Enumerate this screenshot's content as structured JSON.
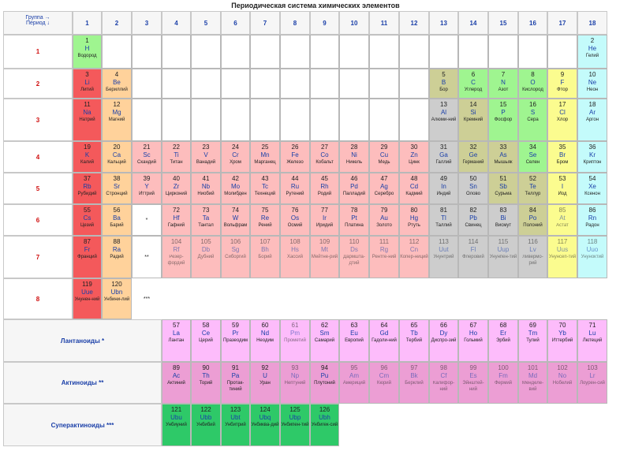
{
  "title": "Периодическая система химических элементов",
  "corner": {
    "group_label": "Группа →",
    "period_label": "Период ↓"
  },
  "groups": [
    "1",
    "2",
    "3",
    "4",
    "5",
    "6",
    "7",
    "8",
    "9",
    "10",
    "11",
    "12",
    "13",
    "14",
    "15",
    "16",
    "17",
    "18"
  ],
  "periods": [
    "1",
    "2",
    "3",
    "4",
    "5",
    "6",
    "7",
    "8"
  ],
  "series_labels": {
    "lan": "Лантаноиды *",
    "act": "Актиноиды **",
    "sup": "Суперактиноиды ***"
  },
  "markers": {
    "p6": "*",
    "p7": "**",
    "p8": "***"
  },
  "colors": {
    "alk": "#f4595b",
    "ae": "#ffd29b",
    "tm": "#fdbdbd",
    "post": "#cdcdcd",
    "met": "#cdcf96",
    "nm": "#9ff590",
    "hal": "#fbfc8f",
    "ng": "#c4fbfb",
    "lan": "#fdbcfb",
    "act": "#ec9ed4",
    "sup": "#2ec968",
    "symbol": "#1a3fa8",
    "period_number": "#d01010"
  },
  "elements": [
    {
      "n": "1",
      "s": "H",
      "name": "Водород",
      "g": 1,
      "p": 1,
      "c": "nm"
    },
    {
      "n": "2",
      "s": "He",
      "name": "Гелий",
      "g": 18,
      "p": 1,
      "c": "ng"
    },
    {
      "n": "3",
      "s": "Li",
      "name": "Литий",
      "g": 1,
      "p": 2,
      "c": "alk"
    },
    {
      "n": "4",
      "s": "Be",
      "name": "Бериллий",
      "g": 2,
      "p": 2,
      "c": "ae"
    },
    {
      "n": "5",
      "s": "B",
      "name": "Бор",
      "g": 13,
      "p": 2,
      "c": "met"
    },
    {
      "n": "6",
      "s": "C",
      "name": "Углерод",
      "g": 14,
      "p": 2,
      "c": "nm"
    },
    {
      "n": "7",
      "s": "N",
      "name": "Азот",
      "g": 15,
      "p": 2,
      "c": "nm"
    },
    {
      "n": "8",
      "s": "O",
      "name": "Кислород",
      "g": 16,
      "p": 2,
      "c": "nm"
    },
    {
      "n": "9",
      "s": "F",
      "name": "Фтор",
      "g": 17,
      "p": 2,
      "c": "hal"
    },
    {
      "n": "10",
      "s": "Ne",
      "name": "Неон",
      "g": 18,
      "p": 2,
      "c": "ng"
    },
    {
      "n": "11",
      "s": "Na",
      "name": "Натрий",
      "g": 1,
      "p": 3,
      "c": "alk"
    },
    {
      "n": "12",
      "s": "Mg",
      "name": "Магний",
      "g": 2,
      "p": 3,
      "c": "ae"
    },
    {
      "n": "13",
      "s": "Al",
      "name": "Алюми-ний",
      "g": 13,
      "p": 3,
      "c": "post"
    },
    {
      "n": "14",
      "s": "Si",
      "name": "Кремний",
      "g": 14,
      "p": 3,
      "c": "met"
    },
    {
      "n": "15",
      "s": "P",
      "name": "Фосфор",
      "g": 15,
      "p": 3,
      "c": "nm"
    },
    {
      "n": "16",
      "s": "S",
      "name": "Сера",
      "g": 16,
      "p": 3,
      "c": "nm"
    },
    {
      "n": "17",
      "s": "Cl",
      "name": "Хлор",
      "g": 17,
      "p": 3,
      "c": "hal"
    },
    {
      "n": "18",
      "s": "Ar",
      "name": "Аргон",
      "g": 18,
      "p": 3,
      "c": "ng"
    },
    {
      "n": "19",
      "s": "K",
      "name": "Калий",
      "g": 1,
      "p": 4,
      "c": "alk"
    },
    {
      "n": "20",
      "s": "Ca",
      "name": "Кальций",
      "g": 2,
      "p": 4,
      "c": "ae"
    },
    {
      "n": "21",
      "s": "Sc",
      "name": "Скандий",
      "g": 3,
      "p": 4,
      "c": "tm"
    },
    {
      "n": "22",
      "s": "Ti",
      "name": "Титан",
      "g": 4,
      "p": 4,
      "c": "tm"
    },
    {
      "n": "23",
      "s": "V",
      "name": "Ванадий",
      "g": 5,
      "p": 4,
      "c": "tm"
    },
    {
      "n": "24",
      "s": "Cr",
      "name": "Хром",
      "g": 6,
      "p": 4,
      "c": "tm"
    },
    {
      "n": "25",
      "s": "Mn",
      "name": "Марганец",
      "g": 7,
      "p": 4,
      "c": "tm"
    },
    {
      "n": "26",
      "s": "Fe",
      "name": "Железо",
      "g": 8,
      "p": 4,
      "c": "tm"
    },
    {
      "n": "27",
      "s": "Co",
      "name": "Кобальт",
      "g": 9,
      "p": 4,
      "c": "tm"
    },
    {
      "n": "28",
      "s": "Ni",
      "name": "Никель",
      "g": 10,
      "p": 4,
      "c": "tm"
    },
    {
      "n": "29",
      "s": "Cu",
      "name": "Медь",
      "g": 11,
      "p": 4,
      "c": "tm"
    },
    {
      "n": "30",
      "s": "Zn",
      "name": "Цинк",
      "g": 12,
      "p": 4,
      "c": "tm"
    },
    {
      "n": "31",
      "s": "Ga",
      "name": "Галлий",
      "g": 13,
      "p": 4,
      "c": "post"
    },
    {
      "n": "32",
      "s": "Ge",
      "name": "Германий",
      "g": 14,
      "p": 4,
      "c": "met"
    },
    {
      "n": "33",
      "s": "As",
      "name": "Мышьяк",
      "g": 15,
      "p": 4,
      "c": "met"
    },
    {
      "n": "34",
      "s": "Se",
      "name": "Селен",
      "g": 16,
      "p": 4,
      "c": "nm"
    },
    {
      "n": "35",
      "s": "Br",
      "name": "Бром",
      "g": 17,
      "p": 4,
      "c": "hal"
    },
    {
      "n": "36",
      "s": "Kr",
      "name": "Криптон",
      "g": 18,
      "p": 4,
      "c": "ng"
    },
    {
      "n": "37",
      "s": "Rb",
      "name": "Рубидий",
      "g": 1,
      "p": 5,
      "c": "alk"
    },
    {
      "n": "38",
      "s": "Sr",
      "name": "Стронций",
      "g": 2,
      "p": 5,
      "c": "ae"
    },
    {
      "n": "39",
      "s": "Y",
      "name": "Иттрий",
      "g": 3,
      "p": 5,
      "c": "tm"
    },
    {
      "n": "40",
      "s": "Zr",
      "name": "Цирконий",
      "g": 4,
      "p": 5,
      "c": "tm"
    },
    {
      "n": "41",
      "s": "Nb",
      "name": "Ниобий",
      "g": 5,
      "p": 5,
      "c": "tm"
    },
    {
      "n": "42",
      "s": "Mo",
      "name": "Молибден",
      "g": 6,
      "p": 5,
      "c": "tm"
    },
    {
      "n": "43",
      "s": "Tc",
      "name": "Технеций",
      "g": 7,
      "p": 5,
      "c": "tm"
    },
    {
      "n": "44",
      "s": "Ru",
      "name": "Рутений",
      "g": 8,
      "p": 5,
      "c": "tm"
    },
    {
      "n": "45",
      "s": "Rh",
      "name": "Родий",
      "g": 9,
      "p": 5,
      "c": "tm"
    },
    {
      "n": "46",
      "s": "Pd",
      "name": "Палладий",
      "g": 10,
      "p": 5,
      "c": "tm"
    },
    {
      "n": "47",
      "s": "Ag",
      "name": "Серебро",
      "g": 11,
      "p": 5,
      "c": "tm"
    },
    {
      "n": "48",
      "s": "Cd",
      "name": "Кадмий",
      "g": 12,
      "p": 5,
      "c": "tm"
    },
    {
      "n": "49",
      "s": "In",
      "name": "Индий",
      "g": 13,
      "p": 5,
      "c": "post"
    },
    {
      "n": "50",
      "s": "Sn",
      "name": "Олово",
      "g": 14,
      "p": 5,
      "c": "post"
    },
    {
      "n": "51",
      "s": "Sb",
      "name": "Сурьма",
      "g": 15,
      "p": 5,
      "c": "met"
    },
    {
      "n": "52",
      "s": "Te",
      "name": "Теллур",
      "g": 16,
      "p": 5,
      "c": "met"
    },
    {
      "n": "53",
      "s": "I",
      "name": "Иод",
      "g": 17,
      "p": 5,
      "c": "hal"
    },
    {
      "n": "54",
      "s": "Xe",
      "name": "Ксенон",
      "g": 18,
      "p": 5,
      "c": "ng"
    },
    {
      "n": "55",
      "s": "Cs",
      "name": "Цезий",
      "g": 1,
      "p": 6,
      "c": "alk"
    },
    {
      "n": "56",
      "s": "Ba",
      "name": "Барий",
      "g": 2,
      "p": 6,
      "c": "ae"
    },
    {
      "n": "72",
      "s": "Hf",
      "name": "Гафний",
      "g": 4,
      "p": 6,
      "c": "tm"
    },
    {
      "n": "73",
      "s": "Ta",
      "name": "Тантал",
      "g": 5,
      "p": 6,
      "c": "tm"
    },
    {
      "n": "74",
      "s": "W",
      "name": "Вольфрам",
      "g": 6,
      "p": 6,
      "c": "tm"
    },
    {
      "n": "75",
      "s": "Re",
      "name": "Рений",
      "g": 7,
      "p": 6,
      "c": "tm"
    },
    {
      "n": "76",
      "s": "Os",
      "name": "Осмий",
      "g": 8,
      "p": 6,
      "c": "tm"
    },
    {
      "n": "77",
      "s": "Ir",
      "name": "Иридий",
      "g": 9,
      "p": 6,
      "c": "tm"
    },
    {
      "n": "78",
      "s": "Pt",
      "name": "Платина",
      "g": 10,
      "p": 6,
      "c": "tm"
    },
    {
      "n": "79",
      "s": "Au",
      "name": "Золото",
      "g": 11,
      "p": 6,
      "c": "tm"
    },
    {
      "n": "80",
      "s": "Hg",
      "name": "Ртуть",
      "g": 12,
      "p": 6,
      "c": "tm"
    },
    {
      "n": "81",
      "s": "Tl",
      "name": "Таллий",
      "g": 13,
      "p": 6,
      "c": "post"
    },
    {
      "n": "82",
      "s": "Pb",
      "name": "Свинец",
      "g": 14,
      "p": 6,
      "c": "post"
    },
    {
      "n": "83",
      "s": "Bi",
      "name": "Висмут",
      "g": 15,
      "p": 6,
      "c": "post"
    },
    {
      "n": "84",
      "s": "Po",
      "name": "Полоний",
      "g": 16,
      "p": 6,
      "c": "met"
    },
    {
      "n": "85",
      "s": "At",
      "name": "Астат",
      "g": 17,
      "p": 6,
      "c": "hal",
      "faint": true
    },
    {
      "n": "86",
      "s": "Rn",
      "name": "Радон",
      "g": 18,
      "p": 6,
      "c": "ng"
    },
    {
      "n": "87",
      "s": "Fr",
      "name": "Франций",
      "g": 1,
      "p": 7,
      "c": "alk"
    },
    {
      "n": "88",
      "s": "Ra",
      "name": "Радий",
      "g": 2,
      "p": 7,
      "c": "ae"
    },
    {
      "n": "104",
      "s": "Rf",
      "name": "Резер-фордий",
      "g": 4,
      "p": 7,
      "c": "tm",
      "faint": true
    },
    {
      "n": "105",
      "s": "Db",
      "name": "Дубний",
      "g": 5,
      "p": 7,
      "c": "tm",
      "faint": true
    },
    {
      "n": "106",
      "s": "Sg",
      "name": "Сиборгий",
      "g": 6,
      "p": 7,
      "c": "tm",
      "faint": true
    },
    {
      "n": "107",
      "s": "Bh",
      "name": "Борий",
      "g": 7,
      "p": 7,
      "c": "tm",
      "faint": true
    },
    {
      "n": "108",
      "s": "Hs",
      "name": "Хассий",
      "g": 8,
      "p": 7,
      "c": "tm",
      "faint": true
    },
    {
      "n": "109",
      "s": "Mt",
      "name": "Мейтне-рий",
      "g": 9,
      "p": 7,
      "c": "tm",
      "faint": true
    },
    {
      "n": "110",
      "s": "Ds",
      "name": "Дармшта-дтий",
      "g": 10,
      "p": 7,
      "c": "tm",
      "faint": true
    },
    {
      "n": "111",
      "s": "Rg",
      "name": "Рентге-ний",
      "g": 11,
      "p": 7,
      "c": "tm",
      "faint": true
    },
    {
      "n": "112",
      "s": "Cn",
      "name": "Копер-ниций",
      "g": 12,
      "p": 7,
      "c": "tm",
      "faint": true
    },
    {
      "n": "113",
      "s": "Uut",
      "name": "Унунтрий",
      "g": 13,
      "p": 7,
      "c": "post",
      "faint": true
    },
    {
      "n": "114",
      "s": "Fl",
      "name": "Флеровий",
      "g": 14,
      "p": 7,
      "c": "post",
      "faint": true
    },
    {
      "n": "115",
      "s": "Uup",
      "name": "Унунпен-тий",
      "g": 15,
      "p": 7,
      "c": "post",
      "faint": true
    },
    {
      "n": "116",
      "s": "Lv",
      "name": "Ливермо-рий",
      "g": 16,
      "p": 7,
      "c": "post",
      "faint": true
    },
    {
      "n": "117",
      "s": "Uus",
      "name": "Унунсеп-тий",
      "g": 17,
      "p": 7,
      "c": "hal",
      "faint": true
    },
    {
      "n": "118",
      "s": "Uuo",
      "name": "Унуноктий",
      "g": 18,
      "p": 7,
      "c": "ng",
      "faint": true
    },
    {
      "n": "119",
      "s": "Uue",
      "name": "Унунен-ний",
      "g": 1,
      "p": 8,
      "c": "alk"
    },
    {
      "n": "120",
      "s": "Ubn",
      "name": "Унбини-лий",
      "g": 2,
      "p": 8,
      "c": "ae"
    }
  ],
  "lanthanides": [
    {
      "n": "57",
      "s": "La",
      "name": "Лантан"
    },
    {
      "n": "58",
      "s": "Ce",
      "name": "Церий"
    },
    {
      "n": "59",
      "s": "Pr",
      "name": "Празеодим"
    },
    {
      "n": "60",
      "s": "Nd",
      "name": "Неодим"
    },
    {
      "n": "61",
      "s": "Pm",
      "name": "Прометий",
      "faint": true
    },
    {
      "n": "62",
      "s": "Sm",
      "name": "Самарий"
    },
    {
      "n": "63",
      "s": "Eu",
      "name": "Европий"
    },
    {
      "n": "64",
      "s": "Gd",
      "name": "Гадоли-ний"
    },
    {
      "n": "65",
      "s": "Tb",
      "name": "Тербий"
    },
    {
      "n": "66",
      "s": "Dy",
      "name": "Диспро-зий"
    },
    {
      "n": "67",
      "s": "Ho",
      "name": "Гольмий"
    },
    {
      "n": "68",
      "s": "Er",
      "name": "Эрбий"
    },
    {
      "n": "69",
      "s": "Tm",
      "name": "Тулий"
    },
    {
      "n": "70",
      "s": "Yb",
      "name": "Иттербий"
    },
    {
      "n": "71",
      "s": "Lu",
      "name": "Лютеций"
    }
  ],
  "actinides": [
    {
      "n": "89",
      "s": "Ac",
      "name": "Актиний"
    },
    {
      "n": "90",
      "s": "Th",
      "name": "Торий"
    },
    {
      "n": "91",
      "s": "Pa",
      "name": "Протак-тиний"
    },
    {
      "n": "92",
      "s": "U",
      "name": "Уран"
    },
    {
      "n": "93",
      "s": "Np",
      "name": "Нептуний",
      "faint": true
    },
    {
      "n": "94",
      "s": "Pu",
      "name": "Плутоний"
    },
    {
      "n": "95",
      "s": "Am",
      "name": "Америций",
      "faint": true
    },
    {
      "n": "96",
      "s": "Cm",
      "name": "Кюрий",
      "faint": true
    },
    {
      "n": "97",
      "s": "Bk",
      "name": "Берклий",
      "faint": true
    },
    {
      "n": "98",
      "s": "Cf",
      "name": "Калифор-ний",
      "faint": true
    },
    {
      "n": "99",
      "s": "Es",
      "name": "Эйнштей-ний",
      "faint": true
    },
    {
      "n": "100",
      "s": "Fm",
      "name": "Фермий",
      "faint": true
    },
    {
      "n": "101",
      "s": "Md",
      "name": "Менделе-вий",
      "faint": true
    },
    {
      "n": "102",
      "s": "No",
      "name": "Нобелий",
      "faint": true
    },
    {
      "n": "103",
      "s": "Lr",
      "name": "Лоурен-сий",
      "faint": true
    }
  ],
  "superactinides": [
    {
      "n": "121",
      "s": "Ubu",
      "name": "Унбиуний"
    },
    {
      "n": "122",
      "s": "Ubb",
      "name": "Унбибий"
    },
    {
      "n": "123",
      "s": "Ubt",
      "name": "Унбитрий"
    },
    {
      "n": "124",
      "s": "Ubq",
      "name": "Унбиква-дий"
    },
    {
      "n": "125",
      "s": "Ubp",
      "name": "Унбипен-тий"
    },
    {
      "n": "126",
      "s": "Ubh",
      "name": "Унбигек-сий"
    }
  ]
}
